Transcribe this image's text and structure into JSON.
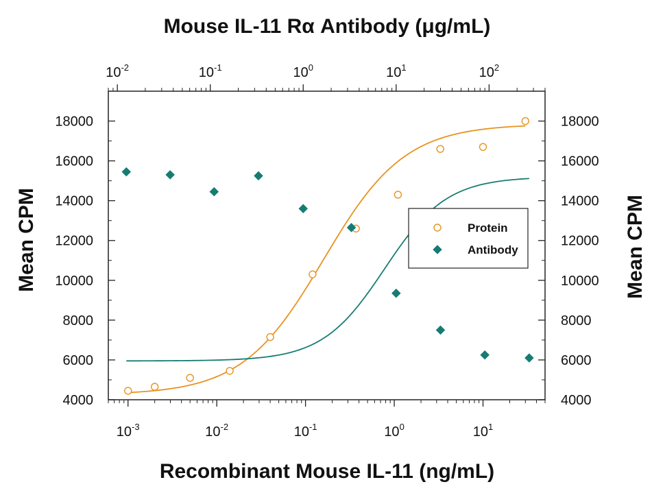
{
  "chart_data": {
    "type": "scatter",
    "title": "Mouse IL-11 Rα Antibody (μg/mL)",
    "xlabel": "Recombinant Mouse IL-11 (ng/mL)",
    "ylabel": "Mean CPM",
    "y2label": "Mean CPM",
    "x_scale": "log",
    "xlim": [
      0.0006,
      50
    ],
    "ylim": [
      4000,
      19500
    ],
    "x_ticks": [
      {
        "value": 0.001,
        "base": "10",
        "exp": "-3"
      },
      {
        "value": 0.01,
        "base": "10",
        "exp": "-2"
      },
      {
        "value": 0.1,
        "base": "10",
        "exp": "-1"
      },
      {
        "value": 1,
        "base": "10",
        "exp": "0"
      },
      {
        "value": 10,
        "base": "10",
        "exp": "1"
      }
    ],
    "x2_scale": "log",
    "x2lim": [
      0.008,
      400
    ],
    "x2_ticks": [
      {
        "value": 0.01,
        "base": "10",
        "exp": "-2"
      },
      {
        "value": 0.1,
        "base": "10",
        "exp": "-1"
      },
      {
        "value": 1,
        "base": "10",
        "exp": "0"
      },
      {
        "value": 10,
        "base": "10",
        "exp": "1"
      },
      {
        "value": 100,
        "base": "10",
        "exp": "2"
      }
    ],
    "y_ticks": [
      "4000",
      "6000",
      "8000",
      "10000",
      "12000",
      "14000",
      "16000",
      "18000"
    ],
    "grid": false,
    "legend_position": "right",
    "series": [
      {
        "name": "Protein",
        "axis": "bottom",
        "marker": "open-circle",
        "color": "#E8921E",
        "x": [
          0.001,
          0.002,
          0.005,
          0.014,
          0.04,
          0.12,
          0.37,
          1.1,
          3.3,
          10,
          30
        ],
        "y": [
          4450,
          4650,
          5100,
          5450,
          7150,
          10300,
          12600,
          14300,
          16600,
          16700,
          18000
        ],
        "fit_curve": {
          "bottom": 4250,
          "top": 17850,
          "ec50": 0.16,
          "hill": 0.95
        }
      },
      {
        "name": "Antibody",
        "axis": "top",
        "marker": "filled-diamond",
        "color": "#167C73",
        "x": [
          0.0125,
          0.037,
          0.11,
          0.33,
          1.0,
          3.3,
          10,
          30,
          90,
          270
        ],
        "y": [
          15450,
          15300,
          14450,
          15250,
          13600,
          12650,
          9350,
          7500,
          6250,
          6100
        ],
        "fit_curve": {
          "bottom": 5950,
          "top": 15200,
          "ec50": 7.5,
          "hill": 1.3
        }
      }
    ]
  }
}
